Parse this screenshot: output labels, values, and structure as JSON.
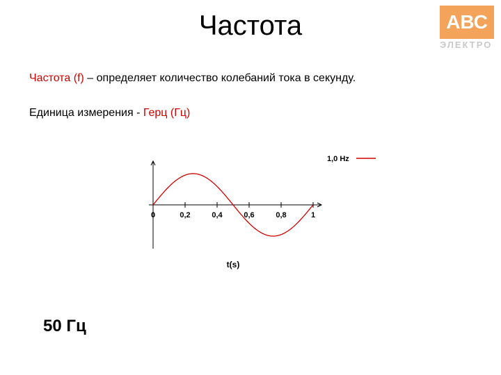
{
  "logo": {
    "top": "АВС",
    "bottom": "ЭЛЕКТРО"
  },
  "title": "Частота",
  "line1": {
    "red": "Частота (f) ",
    "black": " – определяет количество колебаний  тока в секунду."
  },
  "line2": {
    "black1": "Единица измерения - ",
    "red": "Герц (Гц)"
  },
  "chart": {
    "type": "line",
    "sine_color": "#d10000",
    "axis_color": "#000000",
    "background": "#ffffff",
    "xlabel": "t(s)",
    "legend_label": "1,0 Hz",
    "x_ticks": [
      "0",
      "0,2",
      "0,4",
      "0,6",
      "0,8",
      "1"
    ],
    "x_tick_positions": [
      0,
      0.2,
      0.4,
      0.6,
      0.8,
      1.0
    ],
    "amplitude": 1.0,
    "period": 1.0,
    "label_fontsize": 11
  },
  "bottom": "50 Гц"
}
